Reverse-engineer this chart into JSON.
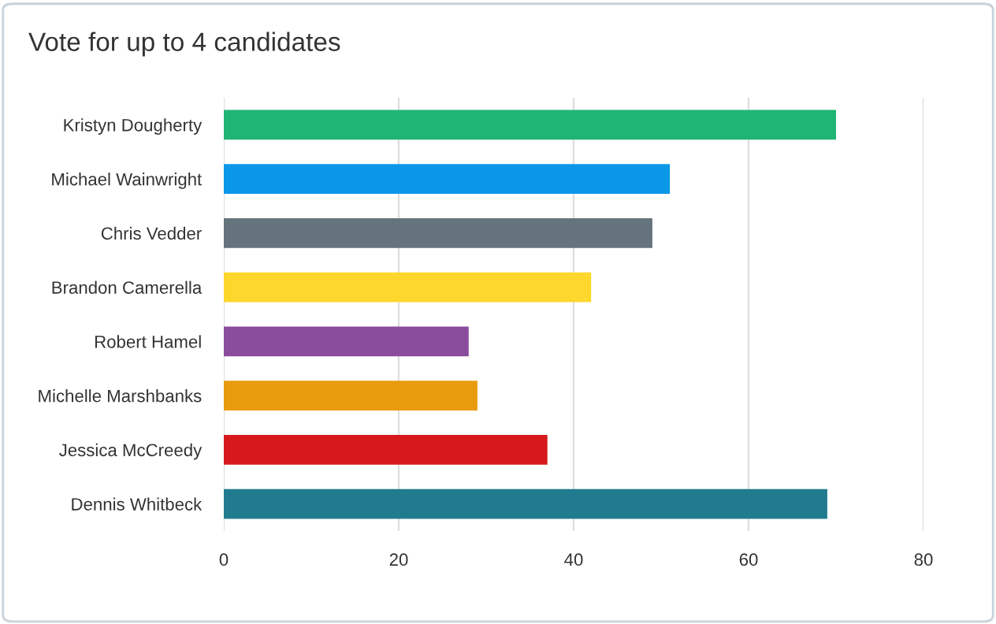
{
  "chart_data": {
    "type": "bar",
    "title": "Vote for up to 4 candidates",
    "orientation": "horizontal",
    "categories": [
      "Kristyn Dougherty",
      "Michael Wainwright",
      "Chris Vedder",
      "Brandon Camerella",
      "Robert Hamel",
      "Michelle Marshbanks",
      "Jessica McCreedy",
      "Dennis Whitbeck"
    ],
    "values": [
      70,
      51,
      49,
      42,
      28,
      29,
      37,
      69
    ],
    "colors": [
      "#1fb574",
      "#0a97e8",
      "#65737c",
      "#fdd72c",
      "#8a4c9c",
      "#e89b0c",
      "#d6191c",
      "#217b8f"
    ],
    "xlim": [
      0,
      80
    ],
    "xticks": [
      0,
      20,
      40,
      60,
      80
    ],
    "grid": "x",
    "legend": false
  }
}
